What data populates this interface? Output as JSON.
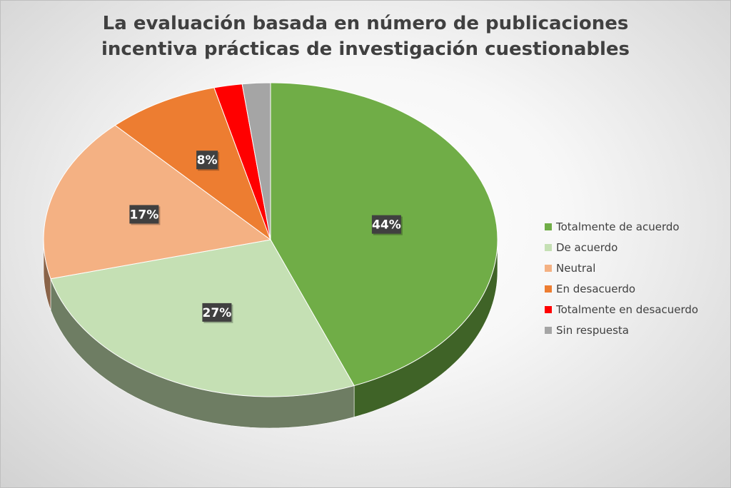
{
  "chart_data": {
    "type": "pie",
    "title_lines": [
      "La evaluación basada en número de publicaciones",
      "incentiva prácticas de investigación cuestionables"
    ],
    "slices": [
      {
        "name": "Totalmente de acuerdo",
        "value": 44,
        "label": "44%",
        "color": "#70ad47",
        "side_color": "#3f6327"
      },
      {
        "name": "De acuerdo",
        "value": 27,
        "label": "27%",
        "color": "#c5e0b4",
        "side_color": "#6e7d63"
      },
      {
        "name": "Neutral",
        "value": 17,
        "label": "17%",
        "color": "#f4b183",
        "side_color": "#8a6449"
      },
      {
        "name": "En desacuerdo",
        "value": 8,
        "label": "8%",
        "color": "#ed7d31",
        "side_color": "#86471c"
      },
      {
        "name": "Totalmente en desacuerdo",
        "value": 2,
        "label": "",
        "color": "#ff0000",
        "side_color": "#8c0000"
      },
      {
        "name": "Sin respuesta",
        "value": 2,
        "label": "",
        "color": "#a5a5a5",
        "side_color": "#5e5e5e"
      }
    ],
    "legend_position": "right",
    "three_d": true
  }
}
